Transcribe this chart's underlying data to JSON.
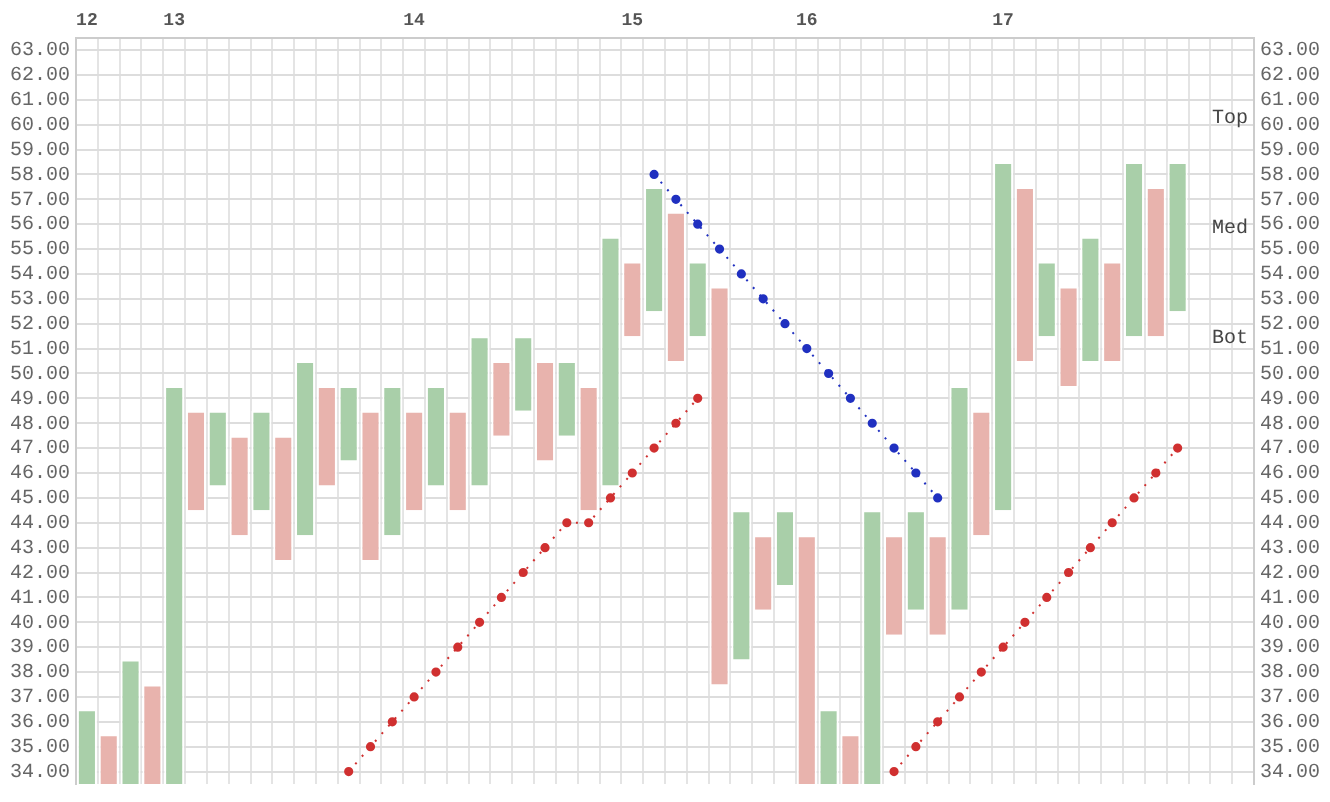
{
  "chart_data": {
    "type": "bar",
    "categories": [
      "12",
      null,
      null,
      null,
      "13",
      null,
      null,
      null,
      null,
      null,
      null,
      null,
      null,
      null,
      null,
      "14",
      null,
      null,
      null,
      null,
      null,
      null,
      null,
      null,
      null,
      "15",
      null,
      null,
      null,
      null,
      null,
      null,
      null,
      "16",
      null,
      null,
      null,
      null,
      null,
      null,
      null,
      null,
      "17",
      null,
      null,
      null,
      null,
      null,
      null,
      null,
      null,
      null,
      null,
      null
    ],
    "ylim": [
      33.5,
      63.5
    ],
    "yticks": [
      {
        "value": 34,
        "label": "34.00"
      },
      {
        "value": 35,
        "label": "35.00"
      },
      {
        "value": 36,
        "label": "36.00"
      },
      {
        "value": 37,
        "label": "37.00"
      },
      {
        "value": 38,
        "label": "38.00"
      },
      {
        "value": 39,
        "label": "39.00"
      },
      {
        "value": 40,
        "label": "40.00"
      },
      {
        "value": 41,
        "label": "41.00"
      },
      {
        "value": 42,
        "label": "42.00"
      },
      {
        "value": 43,
        "label": "43.00"
      },
      {
        "value": 44,
        "label": "44.00"
      },
      {
        "value": 45,
        "label": "45.00"
      },
      {
        "value": 46,
        "label": "46.00"
      },
      {
        "value": 47,
        "label": "47.00"
      },
      {
        "value": 48,
        "label": "48.00"
      },
      {
        "value": 49,
        "label": "49.00"
      },
      {
        "value": 50,
        "label": "50.00"
      },
      {
        "value": 51,
        "label": "51.00"
      },
      {
        "value": 52,
        "label": "52.00"
      },
      {
        "value": 53,
        "label": "53.00"
      },
      {
        "value": 54,
        "label": "54.00"
      },
      {
        "value": 55,
        "label": "55.00"
      },
      {
        "value": 56,
        "label": "56.00"
      },
      {
        "value": 57,
        "label": "57.00"
      },
      {
        "value": 58,
        "label": "58.00"
      },
      {
        "value": 59,
        "label": "59.00"
      },
      {
        "value": 60,
        "label": "60.00"
      },
      {
        "value": 61,
        "label": "61.00"
      },
      {
        "value": 62,
        "label": "62.00"
      },
      {
        "value": 63,
        "label": "63.00"
      }
    ],
    "y2lim": [
      33.5,
      63.5
    ],
    "y2ticks": [
      {
        "value": 34,
        "label": "34.00"
      },
      {
        "value": 35,
        "label": "35.00"
      },
      {
        "value": 36,
        "label": "36.00"
      },
      {
        "value": 37,
        "label": "37.00"
      },
      {
        "value": 38,
        "label": "38.00"
      },
      {
        "value": 39,
        "label": "39.00"
      },
      {
        "value": 40,
        "label": "40.00"
      },
      {
        "value": 41,
        "label": "41.00"
      },
      {
        "value": 42,
        "label": "42.00"
      },
      {
        "value": 43,
        "label": "43.00"
      },
      {
        "value": 44,
        "label": "44.00"
      },
      {
        "value": 45,
        "label": "45.00"
      },
      {
        "value": 46,
        "label": "46.00"
      },
      {
        "value": 47,
        "label": "47.00"
      },
      {
        "value": 48,
        "label": "48.00"
      },
      {
        "value": 49,
        "label": "49.00"
      },
      {
        "value": 50,
        "label": "50.00"
      },
      {
        "value": 51,
        "label": "51.00"
      },
      {
        "value": 52,
        "label": "52.00"
      },
      {
        "value": 53,
        "label": "53.00"
      },
      {
        "value": 54,
        "label": "54.00"
      },
      {
        "value": 55,
        "label": "55.00"
      },
      {
        "value": 56,
        "label": "56.00"
      },
      {
        "value": 57,
        "label": "57.00"
      },
      {
        "value": 58,
        "label": "58.00"
      },
      {
        "value": 59,
        "label": "59.00"
      },
      {
        "value": 60,
        "label": "60.00"
      },
      {
        "value": 61,
        "label": "61.00"
      },
      {
        "value": 62,
        "label": "62.00"
      },
      {
        "value": 63,
        "label": "63.00"
      }
    ],
    "grid": true,
    "series": [
      {
        "base": [
          33.5,
          33.5,
          33.5,
          33.5,
          33.5,
          44.5,
          45.5,
          43.5,
          44.5,
          42.5,
          43.5,
          45.5,
          46.5,
          42.5,
          43.5,
          44.5,
          45.5,
          44.5,
          45.5,
          47.5,
          48.5,
          46.5,
          47.5,
          44.5,
          45.5,
          51.5,
          52.5,
          50.5,
          51.5,
          37.5,
          38.5,
          40.5,
          41.5,
          33.5,
          33.5,
          33.5,
          33.5,
          39.5,
          40.5,
          39.5,
          40.5,
          43.5,
          44.5,
          50.5,
          51.5,
          49.5,
          50.5,
          50.5,
          51.5,
          51.5,
          52.5,
          null,
          null,
          null
        ],
        "values": [
          3,
          2,
          5,
          4,
          16,
          4,
          3,
          4,
          4,
          5,
          7,
          4,
          3,
          6,
          6,
          4,
          4,
          4,
          6,
          3,
          3,
          4,
          3,
          5,
          10,
          3,
          5,
          6,
          3,
          16,
          6,
          3,
          3,
          10,
          3,
          2,
          11,
          4,
          4,
          4,
          9,
          5,
          14,
          7,
          3,
          4,
          5,
          4,
          7,
          6,
          6,
          null,
          null,
          null
        ],
        "colors": [
          "#a9cfa9",
          "#e8b3ad",
          "#a9cfa9",
          "#e8b3ad",
          "#a9cfa9",
          "#e8b3ad",
          "#a9cfa9",
          "#e8b3ad",
          "#a9cfa9",
          "#e8b3ad",
          "#a9cfa9",
          "#e8b3ad",
          "#a9cfa9",
          "#e8b3ad",
          "#a9cfa9",
          "#e8b3ad",
          "#a9cfa9",
          "#e8b3ad",
          "#a9cfa9",
          "#e8b3ad",
          "#a9cfa9",
          "#e8b3ad",
          "#a9cfa9",
          "#e8b3ad",
          "#a9cfa9",
          "#e8b3ad",
          "#a9cfa9",
          "#e8b3ad",
          "#a9cfa9",
          "#e8b3ad",
          "#a9cfa9",
          "#e8b3ad",
          "#a9cfa9",
          "#e8b3ad",
          "#a9cfa9",
          "#e8b3ad",
          "#a9cfa9",
          "#e8b3ad",
          "#a9cfa9",
          "#e8b3ad",
          "#a9cfa9",
          "#e8b3ad",
          "#a9cfa9",
          "#e8b3ad",
          "#a9cfa9",
          "#e8b3ad",
          "#a9cfa9",
          "#e8b3ad",
          "#a9cfa9",
          "#e8b3ad",
          "#a9cfa9",
          "#a9cfa9",
          "#a9cfa9",
          "#a9cfa9"
        ]
      },
      {
        "type": "line",
        "color": "#d03030",
        "marker": "circle",
        "line_style": "dotted",
        "values": [
          null,
          null,
          null,
          null,
          null,
          null,
          null,
          null,
          null,
          null,
          null,
          null,
          34,
          35,
          36,
          37,
          38,
          39,
          40,
          41,
          42,
          43,
          44,
          44,
          45,
          46,
          47,
          48,
          49,
          null,
          null,
          null,
          null,
          null,
          null,
          null,
          null,
          null,
          null,
          null,
          null,
          null,
          null,
          null,
          null,
          null,
          null,
          null,
          null,
          null,
          null,
          null,
          null,
          null
        ]
      },
      {
        "type": "line",
        "color": "#2030c0",
        "marker": "circle",
        "line_style": "dotted",
        "values": [
          null,
          null,
          null,
          null,
          null,
          null,
          null,
          null,
          null,
          null,
          null,
          null,
          null,
          null,
          null,
          null,
          null,
          null,
          null,
          null,
          null,
          null,
          null,
          null,
          null,
          null,
          58,
          57,
          56,
          55,
          54,
          53,
          52,
          51,
          50,
          49,
          48,
          47,
          46,
          45,
          null,
          null,
          null,
          null,
          null,
          null,
          null,
          null,
          null,
          null,
          null,
          null,
          null,
          null
        ]
      },
      {
        "type": "line",
        "color": "#d03030",
        "marker": "circle",
        "line_style": "dotted",
        "values": [
          null,
          null,
          null,
          null,
          null,
          null,
          null,
          null,
          null,
          null,
          null,
          null,
          null,
          null,
          null,
          null,
          null,
          null,
          null,
          null,
          null,
          null,
          null,
          null,
          null,
          null,
          null,
          null,
          null,
          null,
          null,
          null,
          null,
          null,
          null,
          null,
          null,
          34,
          35,
          36,
          37,
          38,
          39,
          40,
          41,
          42,
          43,
          44,
          45,
          46,
          47,
          null,
          null,
          null
        ]
      }
    ],
    "annotations": [
      "Top",
      "Med",
      "Bot"
    ]
  }
}
